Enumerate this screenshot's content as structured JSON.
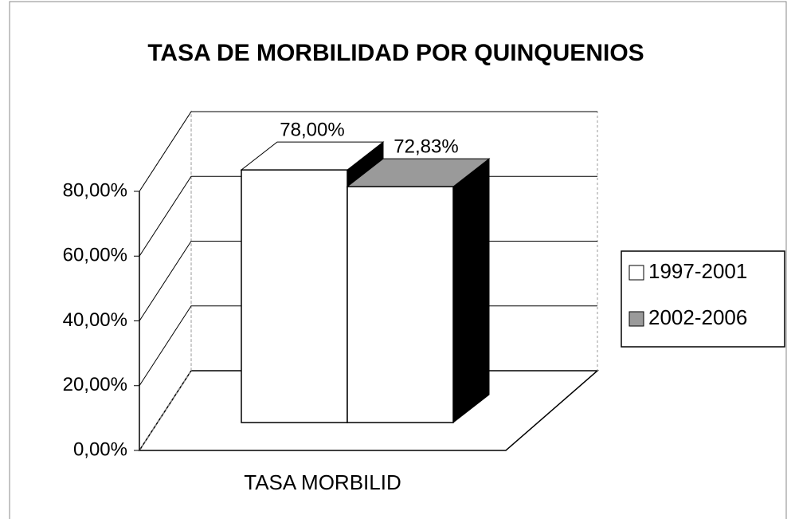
{
  "chart_data": {
    "type": "bar3d",
    "title": "TASA DE MORBILIDAD POR QUINQUENIOS",
    "categories": [
      "TASA MORBILID"
    ],
    "series": [
      {
        "name": "1997-2001",
        "color": "#ffffff",
        "values": [
          78
        ],
        "value_labels": [
          "78,00%"
        ]
      },
      {
        "name": "2002-2006",
        "color": "#9a9a9a",
        "values": [
          72.83
        ],
        "value_labels": [
          "72,83%"
        ]
      }
    ],
    "ylim": [
      0,
      80
    ],
    "yticks": [
      {
        "value": 0,
        "label": "0,00%"
      },
      {
        "value": 20,
        "label": "20,00%"
      },
      {
        "value": 40,
        "label": "40,00%"
      },
      {
        "value": 60,
        "label": "60,00%"
      },
      {
        "value": 80,
        "label": "80,00%"
      }
    ],
    "grid": true,
    "legend": "right"
  }
}
